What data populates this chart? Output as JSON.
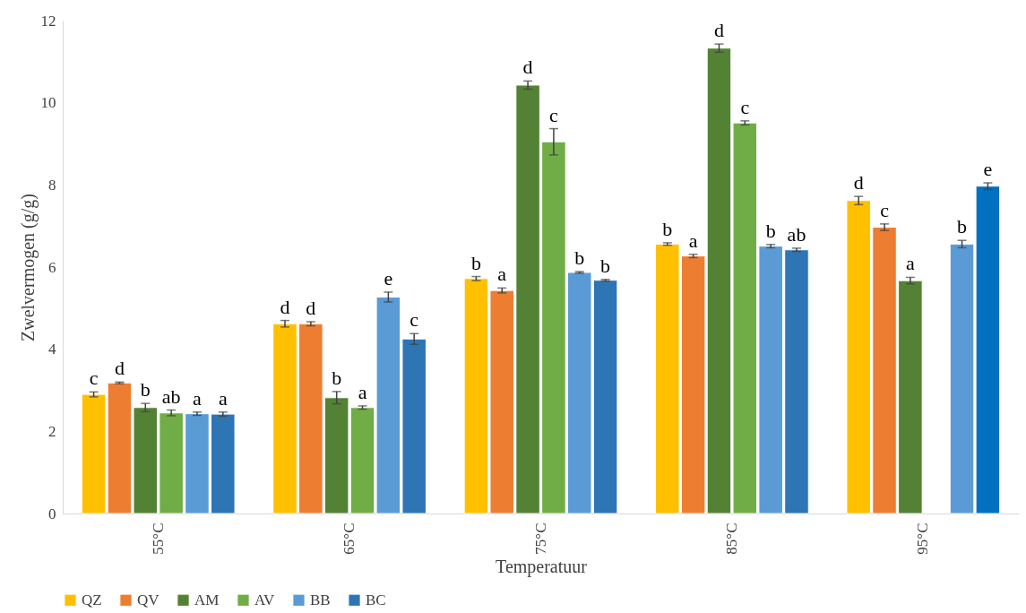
{
  "chart_data": {
    "type": "bar",
    "xlabel": "Temperatuur",
    "ylabel": "Zwelvermogen (g/g)",
    "categories": [
      "55°C",
      "65°C",
      "75°C",
      "85°C",
      "95°C"
    ],
    "ylim": [
      0,
      12
    ],
    "yticks": [
      0,
      2,
      4,
      6,
      8,
      10,
      12
    ],
    "grid": false,
    "legend": "bottom",
    "series": [
      {
        "name": "QZ",
        "color": "#ffc000",
        "values": [
          2.9,
          4.62,
          5.72,
          6.56,
          7.62
        ],
        "errors": [
          0.06,
          0.08,
          0.05,
          0.03,
          0.1
        ],
        "value_labels": [
          "c",
          "d",
          "b",
          "b",
          "d"
        ]
      },
      {
        "name": "QV",
        "color": "#ed7d31",
        "values": [
          3.18,
          4.62,
          5.43,
          6.27,
          6.97
        ],
        "errors": [
          0.02,
          0.05,
          0.06,
          0.04,
          0.08
        ],
        "value_labels": [
          "d",
          "d",
          "a",
          "a",
          "c"
        ]
      },
      {
        "name": "AM",
        "color": "#548235",
        "values": [
          2.58,
          2.82,
          10.43,
          11.33,
          5.67
        ],
        "errors": [
          0.1,
          0.15,
          0.1,
          0.1,
          0.08
        ],
        "value_labels": [
          "b",
          "b",
          "d",
          "d",
          "a"
        ]
      },
      {
        "name": "AV",
        "color": "#70ad47",
        "values": [
          2.45,
          2.58,
          9.05,
          9.51,
          null
        ],
        "errors": [
          0.07,
          0.04,
          0.32,
          0.05,
          null
        ],
        "value_labels": [
          "ab",
          "a",
          "c",
          "c",
          null
        ]
      },
      {
        "name": "BB",
        "color": "#5b9bd5",
        "values": [
          2.43,
          5.27,
          5.87,
          6.51,
          6.56
        ],
        "errors": [
          0.04,
          0.12,
          0.02,
          0.04,
          0.09
        ],
        "value_labels": [
          "a",
          "e",
          "b",
          "b",
          "b"
        ]
      },
      {
        "name": "BC",
        "color": "#2e75b6",
        "colors": [
          "#2e75b6",
          "#2e75b6",
          "#2e75b6",
          "#2e75b6",
          "#0070c0"
        ],
        "values": [
          2.42,
          4.25,
          5.68,
          6.42,
          7.97
        ],
        "errors": [
          0.05,
          0.13,
          0.02,
          0.04,
          0.08
        ],
        "value_labels": [
          "a",
          "c",
          "b",
          "ab",
          "e"
        ]
      }
    ]
  }
}
